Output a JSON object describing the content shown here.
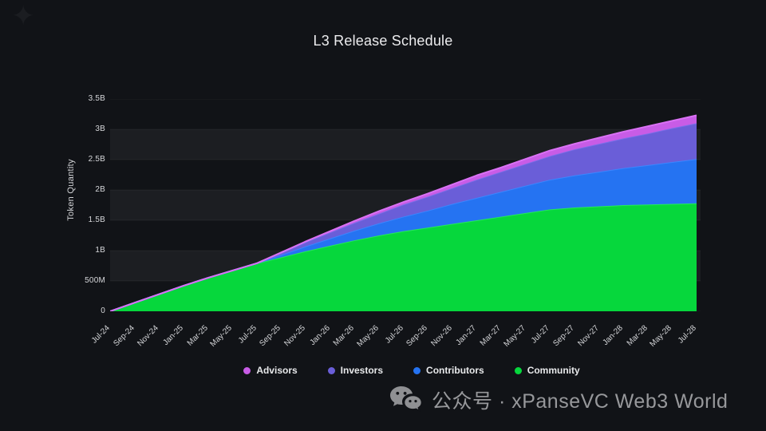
{
  "title": "L3 Release Schedule",
  "watermark": {
    "icon": "wechat-icon",
    "text": "公众号 · xPanseVC Web3 World"
  },
  "chart_data": {
    "type": "area",
    "stacked": true,
    "title": "L3 Release Schedule",
    "xlabel": "",
    "ylabel": "Token Quantity",
    "unit": "billions of tokens",
    "grid": "horizontal-bands",
    "legend_position": "bottom",
    "x_label_rotation": -45,
    "ylim_billions": [
      0,
      3.5
    ],
    "y_tick_values": [
      0,
      0.5,
      1,
      1.5,
      2,
      2.5,
      3,
      3.5
    ],
    "y_tick_labels": [
      "0",
      "500M",
      "1B",
      "1.5B",
      "2B",
      "2.5B",
      "3B",
      "3.5B"
    ],
    "x": [
      "Jul-24",
      "Sep-24",
      "Nov-24",
      "Jan-25",
      "Mar-25",
      "May-25",
      "Jul-25",
      "Sep-25",
      "Nov-25",
      "Jan-26",
      "Mar-26",
      "May-26",
      "Jul-26",
      "Sep-26",
      "Nov-26",
      "Jan-27",
      "Mar-27",
      "May-27",
      "Jul-27",
      "Sep-27",
      "Nov-27",
      "Jan-28",
      "Mar-28",
      "May-28",
      "Jul-28"
    ],
    "series": [
      {
        "name": "Community",
        "color": "#06d73c",
        "edge": "#25e95a",
        "values_billions": [
          0,
          0.14,
          0.28,
          0.42,
          0.55,
          0.67,
          0.79,
          0.89,
          0.99,
          1.08,
          1.17,
          1.25,
          1.32,
          1.38,
          1.44,
          1.5,
          1.56,
          1.62,
          1.68,
          1.71,
          1.73,
          1.75,
          1.76,
          1.77,
          1.78
        ]
      },
      {
        "name": "Contributors",
        "color": "#2573f2",
        "edge": "#3b86ff",
        "values_billions": [
          0,
          0,
          0,
          0,
          0,
          0,
          0,
          0.04,
          0.08,
          0.12,
          0.16,
          0.2,
          0.24,
          0.28,
          0.33,
          0.37,
          0.41,
          0.45,
          0.49,
          0.53,
          0.57,
          0.61,
          0.65,
          0.69,
          0.73
        ]
      },
      {
        "name": "Investors",
        "color": "#6a5ed8",
        "edge": "#7b6ee8",
        "values_billions": [
          0,
          0,
          0,
          0,
          0,
          0,
          0,
          0.03,
          0.07,
          0.1,
          0.13,
          0.16,
          0.2,
          0.23,
          0.26,
          0.3,
          0.33,
          0.36,
          0.39,
          0.43,
          0.46,
          0.49,
          0.52,
          0.56,
          0.59
        ]
      },
      {
        "name": "Advisors",
        "color": "#c85ce6",
        "edge": "#da71f5",
        "values_billions": [
          0,
          0,
          0,
          0,
          0,
          0,
          0,
          0.01,
          0.01,
          0.02,
          0.03,
          0.04,
          0.04,
          0.05,
          0.06,
          0.07,
          0.07,
          0.08,
          0.09,
          0.09,
          0.1,
          0.11,
          0.12,
          0.12,
          0.13
        ]
      }
    ],
    "legend": [
      {
        "label": "Advisors",
        "color": "#c85ce6"
      },
      {
        "label": "Investors",
        "color": "#6a5ed8"
      },
      {
        "label": "Contributors",
        "color": "#2573f2"
      },
      {
        "label": "Community",
        "color": "#06d73c"
      }
    ],
    "style": {
      "band_light": "#1c1e22",
      "gridline": "rgba(255,255,255,0.05)"
    }
  }
}
